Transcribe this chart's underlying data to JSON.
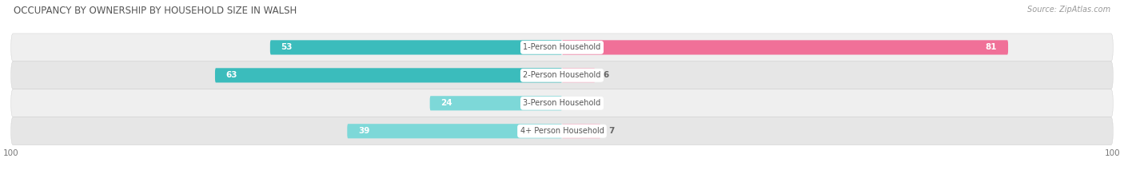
{
  "title": "OCCUPANCY BY OWNERSHIP BY HOUSEHOLD SIZE IN WALSH",
  "source": "Source: ZipAtlas.com",
  "categories": [
    "1-Person Household",
    "2-Person Household",
    "3-Person Household",
    "4+ Person Household"
  ],
  "owner_values": [
    53,
    63,
    24,
    39
  ],
  "renter_values": [
    81,
    6,
    0,
    7
  ],
  "owner_color": "#3BBCBC",
  "owner_color_light": "#7DD8D8",
  "renter_color": "#F07098",
  "renter_color_light": "#F8B8CB",
  "row_bg_color_odd": "#EFEFEF",
  "row_bg_color_even": "#E6E6E6",
  "axis_max": 100,
  "bar_height": 0.52,
  "figsize": [
    14.06,
    2.33
  ],
  "dpi": 100,
  "title_fontsize": 8.5,
  "value_fontsize": 7.5,
  "category_fontsize": 7.0,
  "tick_fontsize": 7.5,
  "source_fontsize": 7.0,
  "legend_fontsize": 7.5
}
